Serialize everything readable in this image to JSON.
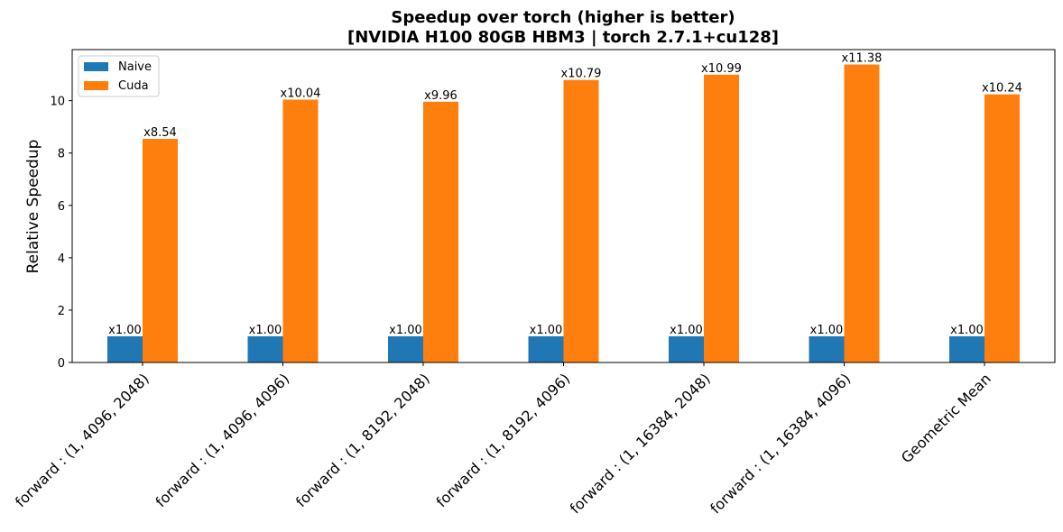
{
  "chart_data": {
    "type": "bar",
    "title": "Speedup over torch (higher is better)",
    "subtitle": "[NVIDIA H100 80GB HBM3 | torch 2.7.1+cu128]",
    "xlabel": "",
    "ylabel": "Relative Speedup",
    "ylim": [
      0,
      11.95
    ],
    "yticks": [
      "0",
      "2",
      "4",
      "6",
      "8",
      "10"
    ],
    "grid": false,
    "legend_position": "top-left",
    "categories": [
      "forward : (1, 4096, 2048)",
      "forward : (1, 4096, 4096)",
      "forward : (1, 8192, 2048)",
      "forward : (1, 8192, 4096)",
      "forward : (1, 16384, 2048)",
      "forward : (1, 16384, 4096)",
      "Geometric Mean"
    ],
    "series": [
      {
        "name": "Naive",
        "color": "#1f77b4",
        "values": [
          1.0,
          1.0,
          1.0,
          1.0,
          1.0,
          1.0,
          1.0
        ],
        "labels": [
          "x1.00",
          "x1.00",
          "x1.00",
          "x1.00",
          "x1.00",
          "x1.00",
          "x1.00"
        ]
      },
      {
        "name": "Cuda",
        "color": "#ff7f0e",
        "values": [
          8.54,
          10.04,
          9.96,
          10.79,
          10.99,
          11.38,
          10.24
        ],
        "labels": [
          "x8.54",
          "x10.04",
          "x9.96",
          "x10.79",
          "x10.99",
          "x11.38",
          "x10.24"
        ]
      }
    ]
  }
}
